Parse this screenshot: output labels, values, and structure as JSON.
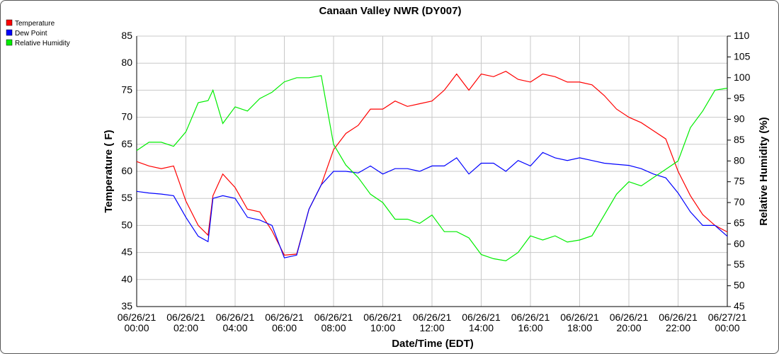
{
  "chart_data": {
    "type": "line",
    "title": "Canaan Valley NWR (DY007)",
    "xlabel": "Date/Time (EDT)",
    "ylabel": "Temperature ( F)",
    "y2label": "Relative Humidity (%)",
    "ylim": [
      35,
      85
    ],
    "y2lim": [
      45,
      110
    ],
    "xlim_hours": [
      0,
      24
    ],
    "grid": true,
    "legend_position": "top-left",
    "yticks": [
      "35",
      "40",
      "45",
      "50",
      "55",
      "60",
      "65",
      "70",
      "75",
      "80",
      "85"
    ],
    "y2ticks": [
      "45",
      "50",
      "55",
      "60",
      "65",
      "70",
      "75",
      "80",
      "85",
      "90",
      "95",
      "100",
      "105",
      "110"
    ],
    "xticks": [
      {
        "date": "06/26/21",
        "time": "00:00"
      },
      {
        "date": "06/26/21",
        "time": "02:00"
      },
      {
        "date": "06/26/21",
        "time": "04:00"
      },
      {
        "date": "06/26/21",
        "time": "06:00"
      },
      {
        "date": "06/26/21",
        "time": "08:00"
      },
      {
        "date": "06/26/21",
        "time": "10:00"
      },
      {
        "date": "06/26/21",
        "time": "12:00"
      },
      {
        "date": "06/26/21",
        "time": "14:00"
      },
      {
        "date": "06/26/21",
        "time": "16:00"
      },
      {
        "date": "06/26/21",
        "time": "18:00"
      },
      {
        "date": "06/26/21",
        "time": "20:00"
      },
      {
        "date": "06/26/21",
        "time": "22:00"
      },
      {
        "date": "06/27/21",
        "time": "00:00"
      }
    ],
    "x": [
      0,
      0.5,
      1,
      1.5,
      2,
      2.5,
      2.9,
      3.1,
      3.5,
      4,
      4.5,
      5,
      5.5,
      6,
      6.5,
      7,
      7.5,
      8,
      8.5,
      9,
      9.5,
      10,
      10.5,
      11,
      11.5,
      12,
      12.5,
      13,
      13.5,
      14,
      14.5,
      15,
      15.5,
      16,
      16.5,
      17,
      17.5,
      18,
      18.5,
      19,
      19.5,
      20,
      20.5,
      21,
      21.5,
      22,
      22.5,
      23,
      23.5,
      24
    ],
    "series": [
      {
        "name": "Temperature",
        "axis": "left",
        "color": "#ff0000",
        "values": [
          61.8,
          61,
          60.5,
          61,
          54.5,
          50,
          48.2,
          55.5,
          59.5,
          57,
          53,
          52.5,
          49,
          44.5,
          44.7,
          53,
          57.5,
          64,
          67,
          68.5,
          71.5,
          71.5,
          73,
          72,
          72.5,
          73,
          75,
          78,
          75,
          78,
          77.5,
          78.5,
          77,
          76.5,
          78,
          77.5,
          76.5,
          76.5,
          76,
          74,
          71.5,
          70,
          69,
          67.5,
          66,
          60,
          55.5,
          52,
          50,
          48.8
        ]
      },
      {
        "name": "Dew Point",
        "axis": "left",
        "color": "#0000ff",
        "values": [
          56.3,
          56,
          55.8,
          55.5,
          51.5,
          48,
          47,
          55,
          55.5,
          55,
          51.5,
          51,
          50,
          44,
          44.5,
          53,
          57.5,
          60,
          60,
          59.7,
          61,
          59.5,
          60.5,
          60.5,
          60,
          61,
          61,
          62.5,
          59.5,
          61.5,
          61.5,
          60,
          62,
          61,
          63.5,
          62.5,
          62,
          62.5,
          62,
          61.5,
          61.3,
          61.1,
          60.5,
          59.5,
          58.8,
          56,
          52.5,
          50,
          50,
          48
        ]
      },
      {
        "name": "Relative Humidity",
        "axis": "right",
        "color": "#00ee00",
        "values": [
          82.5,
          84.5,
          84.5,
          83.5,
          87,
          94,
          94.5,
          97,
          89,
          93,
          92,
          95,
          96.5,
          99,
          100,
          100,
          100.5,
          84,
          79,
          76,
          72,
          70,
          66,
          66,
          65,
          67,
          63,
          63,
          61.5,
          57.5,
          56.5,
          56,
          58,
          62,
          61,
          62,
          60.5,
          61,
          62,
          67,
          72,
          75,
          74,
          76,
          78,
          80,
          88,
          92,
          97,
          97.5
        ]
      }
    ]
  }
}
